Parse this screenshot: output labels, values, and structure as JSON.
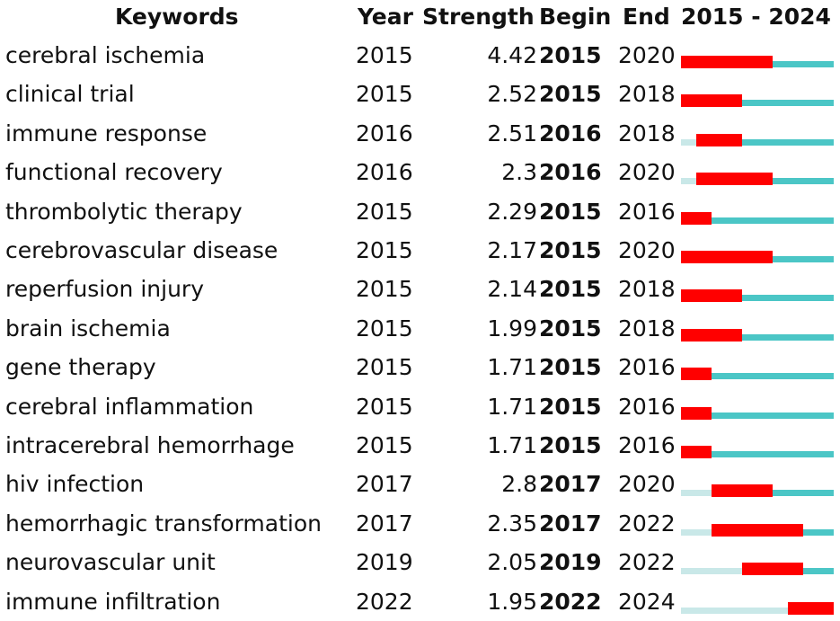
{
  "chart_data": {
    "type": "table",
    "headers": {
      "keyword": "Keywords",
      "year": "Year",
      "strength": "Strength",
      "begin": "Begin",
      "end": "End",
      "range": "2015 - 2024"
    },
    "range_start": 2015,
    "range_end": 2024,
    "colors": {
      "burst": "#ff0000",
      "present": "#4bc6c6",
      "absent": "#c9e8e8"
    },
    "rows": [
      {
        "keyword": "cerebral ischemia",
        "year": "2015",
        "strength": "4.42",
        "begin": "2015",
        "end": "2020"
      },
      {
        "keyword": "clinical trial",
        "year": "2015",
        "strength": "2.52",
        "begin": "2015",
        "end": "2018"
      },
      {
        "keyword": "immune response",
        "year": "2016",
        "strength": "2.51",
        "begin": "2016",
        "end": "2018"
      },
      {
        "keyword": "functional recovery",
        "year": "2016",
        "strength": "2.3",
        "begin": "2016",
        "end": "2020"
      },
      {
        "keyword": "thrombolytic therapy",
        "year": "2015",
        "strength": "2.29",
        "begin": "2015",
        "end": "2016"
      },
      {
        "keyword": "cerebrovascular disease",
        "year": "2015",
        "strength": "2.17",
        "begin": "2015",
        "end": "2020"
      },
      {
        "keyword": "reperfusion injury",
        "year": "2015",
        "strength": "2.14",
        "begin": "2015",
        "end": "2018"
      },
      {
        "keyword": "brain ischemia",
        "year": "2015",
        "strength": "1.99",
        "begin": "2015",
        "end": "2018"
      },
      {
        "keyword": "gene therapy",
        "year": "2015",
        "strength": "1.71",
        "begin": "2015",
        "end": "2016"
      },
      {
        "keyword": "cerebral inflammation",
        "year": "2015",
        "strength": "1.71",
        "begin": "2015",
        "end": "2016"
      },
      {
        "keyword": "intracerebral hemorrhage",
        "year": "2015",
        "strength": "1.71",
        "begin": "2015",
        "end": "2016"
      },
      {
        "keyword": "hiv infection",
        "year": "2017",
        "strength": "2.8",
        "begin": "2017",
        "end": "2020"
      },
      {
        "keyword": "hemorrhagic transformation",
        "year": "2017",
        "strength": "2.35",
        "begin": "2017",
        "end": "2022"
      },
      {
        "keyword": "neurovascular unit",
        "year": "2019",
        "strength": "2.05",
        "begin": "2019",
        "end": "2022"
      },
      {
        "keyword": "immune infiltration",
        "year": "2022",
        "strength": "1.95",
        "begin": "2022",
        "end": "2024"
      }
    ]
  }
}
